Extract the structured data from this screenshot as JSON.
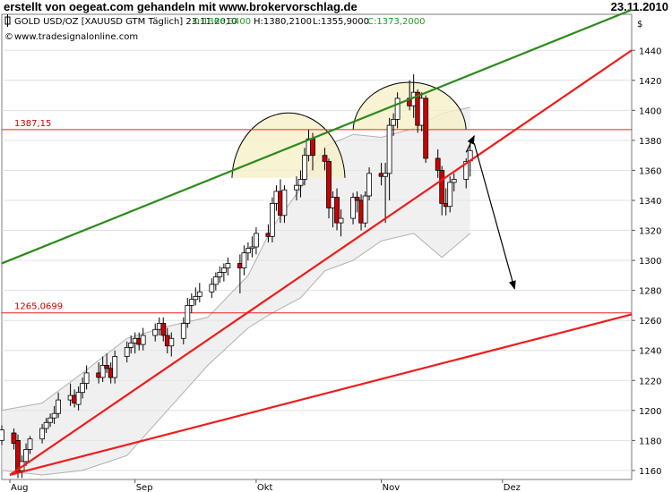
{
  "header": {
    "title": "erstellt von oegeat.com gehandeln mit www.brokervorschlag.de",
    "date": "23.11.2010"
  },
  "chart_data": {
    "type": "candlestick",
    "info": {
      "symbol": "GOLD USD/OZ [XAUUSD GTM  Täglich] 23.11.2010",
      "open": "O:1366,3400",
      "high": "H:1380,2100",
      "low": "L:1355,9000",
      "close": "C:1373,2000",
      "copyright": "www.tradesignalonline.com"
    },
    "y_axis": {
      "label": "$",
      "ticks": [
        1160,
        1180,
        1200,
        1220,
        1240,
        1260,
        1280,
        1300,
        1320,
        1340,
        1360,
        1380,
        1400,
        1420,
        1440
      ],
      "range": [
        1154,
        1464
      ]
    },
    "x_axis": {
      "start_date": "2010-07-30",
      "end_date": "2011-01-02",
      "ticks": [
        {
          "date": "2010-08-01",
          "label": "Aug"
        },
        {
          "date": "2010-09-01",
          "label": "Sep"
        },
        {
          "date": "2010-10-01",
          "label": "Okt"
        },
        {
          "date": "2010-11-01",
          "label": "Nov"
        },
        {
          "date": "2010-12-01",
          "label": "Dez"
        }
      ]
    },
    "colors": {
      "up": "#ffffff",
      "down": "#cc0000",
      "wick": "#000000",
      "band_fill": "#e6e6e6",
      "band_line": "#b0b0b0",
      "hline": "#ee2222",
      "trend_red": "#ee1c1c",
      "trend_green": "#2c8a1a",
      "arc_fill": "#f5f0c8",
      "grid": "#e0e0e0"
    },
    "horizontal_lines": [
      {
        "value": 1387.15,
        "label": "1387,15"
      },
      {
        "value": 1265.0699,
        "label": "1265,0699"
      }
    ],
    "trend_lines": [
      {
        "color": "green",
        "from": {
          "date": "2010-07-30",
          "value": 1298
        },
        "to": {
          "date": "2011-01-02",
          "value": 1467
        }
      },
      {
        "color": "red",
        "from": {
          "date": "2010-08-01",
          "value": 1157
        },
        "to": {
          "date": "2011-01-02",
          "value": 1440
        }
      },
      {
        "color": "red",
        "from": {
          "date": "2010-08-01",
          "value": 1157
        },
        "to": {
          "date": "2011-01-02",
          "value": 1264
        }
      }
    ],
    "arcs": [
      {
        "center": {
          "date": "2010-10-09",
          "value": 1355
        },
        "to_date": "2010-10-23",
        "peak_value": 1400
      },
      {
        "center": {
          "date": "2010-11-08",
          "value": 1387
        },
        "to_date": "2010-11-22",
        "peak_value": 1420
      }
    ],
    "arrows": [
      {
        "from": {
          "date": "2010-11-22",
          "value": 1372
        },
        "to": {
          "date": "2010-11-24",
          "value": 1383
        }
      },
      {
        "from": {
          "date": "2010-11-24",
          "value": 1378
        },
        "to": {
          "date": "2010-12-04",
          "value": 1281
        }
      }
    ],
    "bollinger": {
      "upper": [
        [
          "2010-07-30",
          1200
        ],
        [
          "2010-08-09",
          1205
        ],
        [
          "2010-08-19",
          1225
        ],
        [
          "2010-08-30",
          1248
        ],
        [
          "2010-09-09",
          1256
        ],
        [
          "2010-09-19",
          1262
        ],
        [
          "2010-09-29",
          1290
        ],
        [
          "2010-10-05",
          1322
        ],
        [
          "2010-10-12",
          1348
        ],
        [
          "2010-10-18",
          1376
        ],
        [
          "2010-10-25",
          1384
        ],
        [
          "2010-11-01",
          1382
        ],
        [
          "2010-11-09",
          1388
        ],
        [
          "2010-11-16",
          1398
        ],
        [
          "2010-11-23",
          1402
        ]
      ],
      "lower": [
        [
          "2010-07-30",
          1160
        ],
        [
          "2010-08-09",
          1157
        ],
        [
          "2010-08-19",
          1160
        ],
        [
          "2010-08-30",
          1170
        ],
        [
          "2010-09-09",
          1200
        ],
        [
          "2010-09-19",
          1230
        ],
        [
          "2010-09-29",
          1255
        ],
        [
          "2010-10-05",
          1265
        ],
        [
          "2010-10-12",
          1275
        ],
        [
          "2010-10-18",
          1293
        ],
        [
          "2010-10-25",
          1300
        ],
        [
          "2010-11-01",
          1313
        ],
        [
          "2010-11-09",
          1318
        ],
        [
          "2010-11-16",
          1302
        ],
        [
          "2010-11-23",
          1318
        ]
      ]
    },
    "candles": [
      {
        "d": "2010-07-30",
        "o": 1180,
        "h": 1190,
        "l": 1177,
        "c": 1187
      },
      {
        "d": "2010-08-02",
        "o": 1185,
        "h": 1188,
        "l": 1174,
        "c": 1178
      },
      {
        "d": "2010-08-03",
        "o": 1180,
        "h": 1184,
        "l": 1155,
        "c": 1159
      },
      {
        "d": "2010-08-04",
        "o": 1160,
        "h": 1170,
        "l": 1155,
        "c": 1166
      },
      {
        "d": "2010-08-05",
        "o": 1166,
        "h": 1178,
        "l": 1163,
        "c": 1174
      },
      {
        "d": "2010-08-06",
        "o": 1174,
        "h": 1183,
        "l": 1171,
        "c": 1181
      },
      {
        "d": "2010-08-09",
        "o": 1181,
        "h": 1191,
        "l": 1178,
        "c": 1188
      },
      {
        "d": "2010-08-10",
        "o": 1188,
        "h": 1195,
        "l": 1185,
        "c": 1192
      },
      {
        "d": "2010-08-11",
        "o": 1192,
        "h": 1198,
        "l": 1189,
        "c": 1195
      },
      {
        "d": "2010-08-12",
        "o": 1195,
        "h": 1203,
        "l": 1191,
        "c": 1198
      },
      {
        "d": "2010-08-13",
        "o": 1198,
        "h": 1212,
        "l": 1195,
        "c": 1207
      },
      {
        "d": "2010-08-16",
        "o": 1207,
        "h": 1218,
        "l": 1203,
        "c": 1210
      },
      {
        "d": "2010-08-17",
        "o": 1210,
        "h": 1214,
        "l": 1202,
        "c": 1205
      },
      {
        "d": "2010-08-18",
        "o": 1204,
        "h": 1216,
        "l": 1200,
        "c": 1212
      },
      {
        "d": "2010-08-19",
        "o": 1212,
        "h": 1222,
        "l": 1208,
        "c": 1218
      },
      {
        "d": "2010-08-20",
        "o": 1218,
        "h": 1230,
        "l": 1214,
        "c": 1225
      },
      {
        "d": "2010-08-23",
        "o": 1225,
        "h": 1232,
        "l": 1218,
        "c": 1222
      },
      {
        "d": "2010-08-24",
        "o": 1222,
        "h": 1236,
        "l": 1219,
        "c": 1230
      },
      {
        "d": "2010-08-25",
        "o": 1230,
        "h": 1238,
        "l": 1225,
        "c": 1228
      },
      {
        "d": "2010-08-26",
        "o": 1228,
        "h": 1232,
        "l": 1218,
        "c": 1222
      },
      {
        "d": "2010-08-27",
        "o": 1222,
        "h": 1240,
        "l": 1218,
        "c": 1236
      },
      {
        "d": "2010-08-30",
        "o": 1236,
        "h": 1246,
        "l": 1232,
        "c": 1242
      },
      {
        "d": "2010-08-31",
        "o": 1242,
        "h": 1250,
        "l": 1238,
        "c": 1245
      },
      {
        "d": "2010-09-01",
        "o": 1245,
        "h": 1252,
        "l": 1238,
        "c": 1248
      },
      {
        "d": "2010-09-02",
        "o": 1248,
        "h": 1252,
        "l": 1240,
        "c": 1244
      },
      {
        "d": "2010-09-03",
        "o": 1244,
        "h": 1255,
        "l": 1240,
        "c": 1250
      },
      {
        "d": "2010-09-06",
        "o": 1250,
        "h": 1258,
        "l": 1246,
        "c": 1254
      },
      {
        "d": "2010-09-07",
        "o": 1254,
        "h": 1262,
        "l": 1250,
        "c": 1258
      },
      {
        "d": "2010-09-08",
        "o": 1258,
        "h": 1262,
        "l": 1246,
        "c": 1250
      },
      {
        "d": "2010-09-09",
        "o": 1250,
        "h": 1255,
        "l": 1238,
        "c": 1243
      },
      {
        "d": "2010-09-10",
        "o": 1243,
        "h": 1252,
        "l": 1236,
        "c": 1248
      },
      {
        "d": "2010-09-13",
        "o": 1248,
        "h": 1262,
        "l": 1244,
        "c": 1258
      },
      {
        "d": "2010-09-14",
        "o": 1258,
        "h": 1275,
        "l": 1255,
        "c": 1270
      },
      {
        "d": "2010-09-15",
        "o": 1270,
        "h": 1278,
        "l": 1265,
        "c": 1274
      },
      {
        "d": "2010-09-16",
        "o": 1274,
        "h": 1282,
        "l": 1270,
        "c": 1276
      },
      {
        "d": "2010-09-17",
        "o": 1276,
        "h": 1285,
        "l": 1272,
        "c": 1279
      },
      {
        "d": "2010-09-20",
        "o": 1279,
        "h": 1288,
        "l": 1275,
        "c": 1284
      },
      {
        "d": "2010-09-21",
        "o": 1284,
        "h": 1292,
        "l": 1280,
        "c": 1289
      },
      {
        "d": "2010-09-22",
        "o": 1289,
        "h": 1296,
        "l": 1285,
        "c": 1292
      },
      {
        "d": "2010-09-23",
        "o": 1292,
        "h": 1298,
        "l": 1286,
        "c": 1295
      },
      {
        "d": "2010-09-24",
        "o": 1295,
        "h": 1302,
        "l": 1290,
        "c": 1298
      },
      {
        "d": "2010-09-27",
        "o": 1298,
        "h": 1304,
        "l": 1278,
        "c": 1295
      },
      {
        "d": "2010-09-28",
        "o": 1295,
        "h": 1310,
        "l": 1290,
        "c": 1305
      },
      {
        "d": "2010-09-29",
        "o": 1305,
        "h": 1312,
        "l": 1300,
        "c": 1308
      },
      {
        "d": "2010-09-30",
        "o": 1308,
        "h": 1316,
        "l": 1302,
        "c": 1309
      },
      {
        "d": "2010-10-01",
        "o": 1309,
        "h": 1322,
        "l": 1304,
        "c": 1318
      },
      {
        "d": "2010-10-04",
        "o": 1318,
        "h": 1324,
        "l": 1312,
        "c": 1316
      },
      {
        "d": "2010-10-05",
        "o": 1316,
        "h": 1342,
        "l": 1312,
        "c": 1338
      },
      {
        "d": "2010-10-06",
        "o": 1338,
        "h": 1350,
        "l": 1333,
        "c": 1346
      },
      {
        "d": "2010-10-07",
        "o": 1346,
        "h": 1354,
        "l": 1325,
        "c": 1330
      },
      {
        "d": "2010-10-08",
        "o": 1330,
        "h": 1350,
        "l": 1325,
        "c": 1347
      },
      {
        "d": "2010-10-11",
        "o": 1347,
        "h": 1356,
        "l": 1340,
        "c": 1350
      },
      {
        "d": "2010-10-12",
        "o": 1350,
        "h": 1360,
        "l": 1342,
        "c": 1354
      },
      {
        "d": "2010-10-13",
        "o": 1354,
        "h": 1375,
        "l": 1350,
        "c": 1370
      },
      {
        "d": "2010-10-14",
        "o": 1370,
        "h": 1387,
        "l": 1366,
        "c": 1381
      },
      {
        "d": "2010-10-15",
        "o": 1381,
        "h": 1385,
        "l": 1360,
        "c": 1370
      },
      {
        "d": "2010-10-18",
        "o": 1370,
        "h": 1375,
        "l": 1360,
        "c": 1366
      },
      {
        "d": "2010-10-19",
        "o": 1366,
        "h": 1368,
        "l": 1328,
        "c": 1335
      },
      {
        "d": "2010-10-20",
        "o": 1335,
        "h": 1346,
        "l": 1322,
        "c": 1342
      },
      {
        "d": "2010-10-21",
        "o": 1342,
        "h": 1348,
        "l": 1320,
        "c": 1325
      },
      {
        "d": "2010-10-22",
        "o": 1325,
        "h": 1334,
        "l": 1316,
        "c": 1328
      },
      {
        "d": "2010-10-25",
        "o": 1328,
        "h": 1345,
        "l": 1324,
        "c": 1342
      },
      {
        "d": "2010-10-26",
        "o": 1342,
        "h": 1346,
        "l": 1332,
        "c": 1340
      },
      {
        "d": "2010-10-27",
        "o": 1340,
        "h": 1344,
        "l": 1320,
        "c": 1325
      },
      {
        "d": "2010-10-28",
        "o": 1325,
        "h": 1346,
        "l": 1322,
        "c": 1343
      },
      {
        "d": "2010-10-29",
        "o": 1343,
        "h": 1362,
        "l": 1340,
        "c": 1358
      },
      {
        "d": "2010-11-01",
        "o": 1358,
        "h": 1365,
        "l": 1350,
        "c": 1356
      },
      {
        "d": "2010-11-02",
        "o": 1356,
        "h": 1365,
        "l": 1325,
        "c": 1358
      },
      {
        "d": "2010-11-03",
        "o": 1358,
        "h": 1395,
        "l": 1340,
        "c": 1390
      },
      {
        "d": "2010-11-04",
        "o": 1390,
        "h": 1398,
        "l": 1383,
        "c": 1394
      },
      {
        "d": "2010-11-05",
        "o": 1394,
        "h": 1412,
        "l": 1388,
        "c": 1408
      },
      {
        "d": "2010-11-08",
        "o": 1408,
        "h": 1420,
        "l": 1400,
        "c": 1403
      },
      {
        "d": "2010-11-09",
        "o": 1403,
        "h": 1424,
        "l": 1395,
        "c": 1412
      },
      {
        "d": "2010-11-10",
        "o": 1412,
        "h": 1414,
        "l": 1385,
        "c": 1390
      },
      {
        "d": "2010-11-11",
        "o": 1390,
        "h": 1412,
        "l": 1386,
        "c": 1408
      },
      {
        "d": "2010-11-12",
        "o": 1408,
        "h": 1410,
        "l": 1365,
        "c": 1368
      },
      {
        "d": "2010-11-15",
        "o": 1368,
        "h": 1374,
        "l": 1355,
        "c": 1360
      },
      {
        "d": "2010-11-16",
        "o": 1360,
        "h": 1363,
        "l": 1330,
        "c": 1338
      },
      {
        "d": "2010-11-17",
        "o": 1338,
        "h": 1348,
        "l": 1330,
        "c": 1336
      },
      {
        "d": "2010-11-18",
        "o": 1336,
        "h": 1356,
        "l": 1332,
        "c": 1352
      },
      {
        "d": "2010-11-19",
        "o": 1352,
        "h": 1358,
        "l": 1346,
        "c": 1354
      },
      {
        "d": "2010-11-22",
        "o": 1354,
        "h": 1368,
        "l": 1348,
        "c": 1366
      },
      {
        "d": "2010-11-23",
        "o": 1366.34,
        "h": 1380.21,
        "l": 1355.9,
        "c": 1373.2
      }
    ]
  }
}
